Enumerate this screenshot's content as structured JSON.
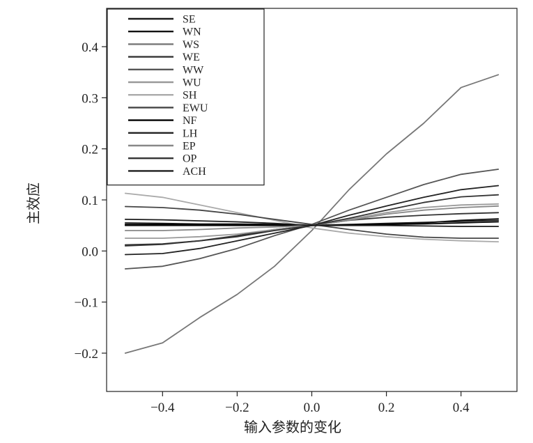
{
  "chart_data": {
    "type": "line",
    "title": "",
    "xlabel": "输入参数的变化",
    "ylabel": "主效应",
    "xlim": [
      -0.55,
      0.55
    ],
    "ylim": [
      -0.275,
      0.475
    ],
    "x_ticks": [
      -0.4,
      -0.2,
      0.0,
      0.2,
      0.4
    ],
    "x_tick_labels": [
      "−0.4",
      "−0.2",
      "0.0",
      "0.2",
      "0.4"
    ],
    "y_ticks": [
      -0.2,
      -0.1,
      0.0,
      0.1,
      0.2,
      0.3,
      0.4
    ],
    "y_tick_labels": [
      "−0.2",
      "−0.1",
      "0.0",
      "0.1",
      "0.2",
      "0.3",
      "0.4"
    ],
    "grid": false,
    "legend_position": "top-left",
    "x": [
      -0.5,
      -0.4,
      -0.3,
      -0.2,
      -0.1,
      0.0,
      0.1,
      0.2,
      0.3,
      0.4,
      0.5
    ],
    "series": [
      {
        "name": "SE",
        "color": "#1a1a1a",
        "values": [
          0.055,
          0.054,
          0.053,
          0.053,
          0.052,
          0.05,
          0.052,
          0.054,
          0.056,
          0.058,
          0.06
        ]
      },
      {
        "name": "WN",
        "color": "#111111",
        "values": [
          0.05,
          0.05,
          0.05,
          0.05,
          0.05,
          0.05,
          0.051,
          0.052,
          0.055,
          0.06,
          0.063
        ]
      },
      {
        "name": "WS",
        "color": "#777777",
        "values": [
          -0.2,
          -0.18,
          -0.13,
          -0.085,
          -0.03,
          0.04,
          0.12,
          0.19,
          0.25,
          0.32,
          0.345
        ]
      },
      {
        "name": "WE",
        "color": "#333333",
        "values": [
          0.01,
          0.013,
          0.02,
          0.03,
          0.042,
          0.05,
          0.06,
          0.066,
          0.07,
          0.073,
          0.075
        ]
      },
      {
        "name": "WW",
        "color": "#555555",
        "values": [
          -0.035,
          -0.03,
          -0.015,
          0.005,
          0.03,
          0.052,
          0.08,
          0.105,
          0.13,
          0.15,
          0.16
        ]
      },
      {
        "name": "WU",
        "color": "#999999",
        "values": [
          0.025,
          0.025,
          0.028,
          0.033,
          0.042,
          0.05,
          0.062,
          0.075,
          0.085,
          0.09,
          0.092
        ]
      },
      {
        "name": "SH",
        "color": "#aaaaaa",
        "values": [
          0.113,
          0.105,
          0.09,
          0.075,
          0.06,
          0.045,
          0.035,
          0.028,
          0.023,
          0.02,
          0.018
        ]
      },
      {
        "name": "EWU",
        "color": "#444444",
        "values": [
          0.087,
          0.085,
          0.08,
          0.072,
          0.062,
          0.052,
          0.042,
          0.033,
          0.027,
          0.025,
          0.025
        ]
      },
      {
        "name": "NF",
        "color": "#000000",
        "values": [
          0.052,
          0.052,
          0.051,
          0.051,
          0.051,
          0.05,
          0.051,
          0.052,
          0.053,
          0.055,
          0.057
        ]
      },
      {
        "name": "LH",
        "color": "#222222",
        "values": [
          -0.007,
          -0.005,
          0.005,
          0.02,
          0.035,
          0.05,
          0.07,
          0.088,
          0.105,
          0.12,
          0.128
        ]
      },
      {
        "name": "EP",
        "color": "#888888",
        "values": [
          0.04,
          0.04,
          0.042,
          0.045,
          0.047,
          0.05,
          0.06,
          0.072,
          0.08,
          0.085,
          0.088
        ]
      },
      {
        "name": "OP",
        "color": "#333333",
        "values": [
          0.012,
          0.014,
          0.02,
          0.028,
          0.04,
          0.05,
          0.064,
          0.08,
          0.095,
          0.106,
          0.11
        ]
      },
      {
        "name": "ACH",
        "color": "#1c1c1c",
        "values": [
          0.062,
          0.061,
          0.059,
          0.057,
          0.054,
          0.05,
          0.05,
          0.05,
          0.049,
          0.048,
          0.048
        ]
      }
    ]
  }
}
